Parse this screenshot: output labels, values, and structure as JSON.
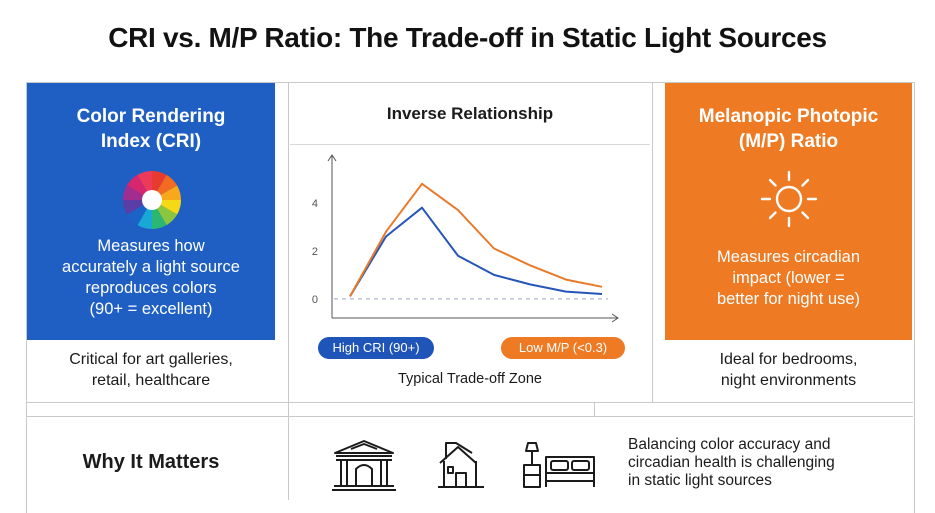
{
  "title": "CRI vs. M/P Ratio: The Trade-off in Static Light Sources",
  "left_panel": {
    "title_line1": "Color Rendering",
    "title_line2": "Index (CRI)",
    "icon": "color-wheel-icon",
    "desc_line1": "Measures how",
    "desc_line2": "accurately a light source",
    "desc_line3": "reproduces colors",
    "desc_line4": "(90+ = excellent)",
    "note_line1": "Critical for art galleries,",
    "note_line2": "retail, healthcare",
    "color": "#1f5fc4"
  },
  "middle_panel": {
    "title": "Inverse Relationship",
    "badge_cri": "High CRI (90+)",
    "badge_mp": "Low M/P (<0.3)",
    "zone_label": "Typical Trade-off Zone"
  },
  "right_panel": {
    "title_line1": "Melanopic Photopic",
    "title_line2": "(M/P) Ratio",
    "icon": "sun-icon",
    "desc_line1": "Measures circadian",
    "desc_line2": "impact (lower =",
    "desc_line3": "better for night use)",
    "note_line1": "Ideal for bedrooms,",
    "note_line2": "night environments",
    "color": "#ee7a24"
  },
  "bottom": {
    "why_label": "Why It Matters",
    "icons": [
      "museum-icon",
      "house-icon",
      "bedroom-icon"
    ],
    "text_line1": "Balancing color accuracy and",
    "text_line2": "circadian health is challenging",
    "text_line3": "in static light sources"
  },
  "chart_data": {
    "type": "line",
    "title": "Inverse Relationship",
    "x": [
      1,
      2,
      3,
      4,
      5,
      6,
      7,
      8
    ],
    "series": [
      {
        "name": "",
        "color": "#2555b8",
        "values": [
          0.1,
          2.6,
          3.8,
          1.8,
          1.0,
          0.6,
          0.3,
          0.2
        ]
      },
      {
        "name": "",
        "color": "#e87a2a",
        "values": [
          0.1,
          2.8,
          4.8,
          3.7,
          2.1,
          1.4,
          0.8,
          0.5
        ]
      }
    ],
    "y_ticks": [
      0,
      2,
      4
    ],
    "ylim": [
      -0.8,
      6
    ],
    "reference_line_y": 0,
    "grid": false
  }
}
